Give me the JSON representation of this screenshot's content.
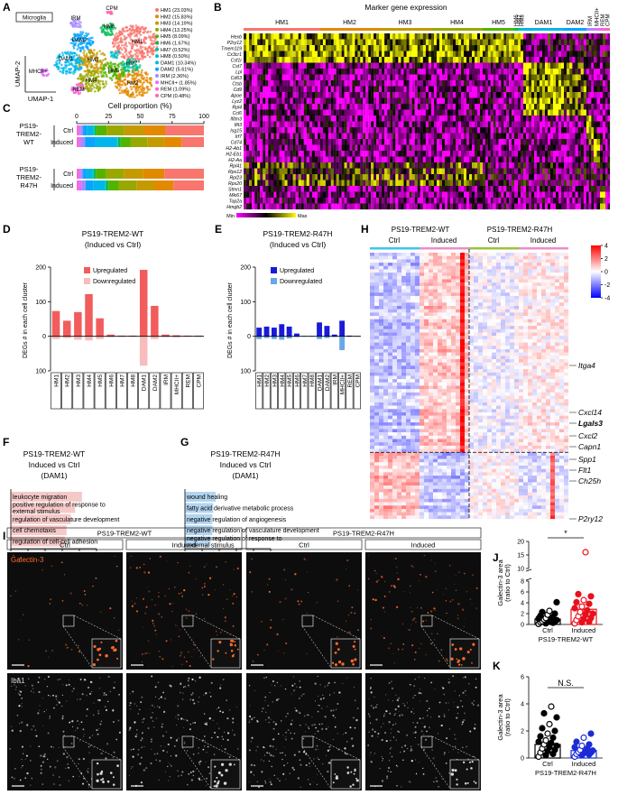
{
  "panel_letters": [
    "A",
    "B",
    "C",
    "D",
    "E",
    "F",
    "G",
    "H",
    "I",
    "J",
    "K"
  ],
  "umap": {
    "box_label": "Microglia",
    "x_label": "UMAP-1",
    "y_label": "UMAP-2",
    "cluster_labels": [
      "IRM",
      "CPM",
      "HM6",
      "DAM2",
      "HM1",
      "DAM1",
      "HM3",
      "HM5",
      "HM7",
      "HM4",
      "HM2",
      "MHCII+",
      "REM"
    ],
    "legend": [
      {
        "label": "HM1 (23.03%)",
        "color": "#F8766D"
      },
      {
        "label": "HM2 (15.83%)",
        "color": "#E38900"
      },
      {
        "label": "HM3 (14.19%)",
        "color": "#C49A00"
      },
      {
        "label": "HM4 (13.25%)",
        "color": "#99A800"
      },
      {
        "label": "HM5 (8.09%)",
        "color": "#53B400"
      },
      {
        "label": "HM6 (1.67%)",
        "color": "#00BC56"
      },
      {
        "label": "HM7 (0.52%)",
        "color": "#00C094"
      },
      {
        "label": "HM8 (0.50%)",
        "color": "#00BFC4"
      },
      {
        "label": "DAM1 (10.34%)",
        "color": "#00B6EB"
      },
      {
        "label": "DAM2 (5.61%)",
        "color": "#06A4FF"
      },
      {
        "label": "IRM (2.36%)",
        "color": "#A58AFF"
      },
      {
        "label": "MHCII+ (1.85%)",
        "color": "#DF70F8"
      },
      {
        "label": "REM (1.09%)",
        "color": "#FB61D7"
      },
      {
        "label": "CPM (0.48%)",
        "color": "#FF66A8"
      }
    ]
  },
  "marker_heatmap": {
    "title": "Marker gene expression",
    "clusters": [
      "HM1",
      "HM2",
      "HM3",
      "HM4",
      "HM5",
      "HM6",
      "HM7",
      "HM8",
      "DAM1",
      "DAM2",
      "IRM",
      "MHCII+",
      "REM",
      "CPM"
    ],
    "genes": [
      "Hexb",
      "P2ry12",
      "Tmem119",
      "Cx3cr1",
      "Csf1r",
      "Cst7",
      "Lpl",
      "Cd63",
      "Ctsb",
      "Cd9",
      "Apoe",
      "Lyz2",
      "Rpl4",
      "Ccl6",
      "Ifitm3",
      "Ifit3",
      "Isg15",
      "Irf7",
      "Cd74",
      "H2-Ab1",
      "H2-Eb1",
      "H2-Aa",
      "Rpl41",
      "Rps12",
      "Rpl23",
      "Rps20",
      "Stmn1",
      "Mki67",
      "Top2a",
      "Hmgb2"
    ],
    "scale_min": "Min",
    "scale_max": "Max"
  },
  "deg_heatmap": {
    "groups": [
      "PS19-TREM2-WT",
      "PS19-TREM2-R47H"
    ],
    "conditions": [
      "Ctrl",
      "Induced",
      "Ctrl",
      "Induced"
    ],
    "condition_colors": [
      "#3fc6e6",
      "#e88fc8",
      "#9bc33b",
      "#e88fc8"
    ],
    "clim": [
      -4,
      4
    ],
    "cticks": [
      4,
      2,
      0,
      -2,
      -4
    ],
    "genes": [
      "Itga4",
      "Cxcl14",
      "Lgals3",
      "Cxcl2",
      "Capn1",
      "Spp1",
      "Flt1",
      "Ch25h",
      "P2ry12"
    ],
    "bold_gene": 2
  },
  "images": {
    "groups": [
      "PS19-TREM2-WT",
      "PS19-TREM2-R47H"
    ],
    "conditions": [
      "Ctrl",
      "Induced",
      "Ctrl",
      "Induced"
    ],
    "stains": [
      {
        "label": "Galectin-3",
        "color": "#ff6a2a"
      },
      {
        "label": "Iba1",
        "color": "#d8d8d8"
      }
    ]
  },
  "chart_data": [
    {
      "type": "stacked_barh",
      "title": "Cell proportion (%)",
      "groups": [
        [
          "PS19-",
          "TREM2-",
          "WT"
        ],
        [
          "PS19-",
          "TREM2-",
          "R47H"
        ]
      ],
      "categories": [
        "Ctrl",
        "Induced",
        "Ctrl",
        "Induced"
      ],
      "xlim": [
        0,
        100
      ],
      "xticks": [
        0,
        25,
        50,
        75,
        100
      ],
      "series": [
        {
          "color": "#F8766D",
          "values": [
            30.5,
            17.5,
            31,
            24
          ]
        },
        {
          "color": "#E38900",
          "values": [
            17,
            14,
            17,
            15
          ]
        },
        {
          "color": "#C49A00",
          "values": [
            15,
            13,
            15,
            14
          ]
        },
        {
          "color": "#99A800",
          "values": [
            14,
            13,
            14,
            14
          ]
        },
        {
          "color": "#53B400",
          "values": [
            8,
            8,
            8,
            8
          ]
        },
        {
          "color": "#00BC56",
          "values": [
            1.5,
            2,
            1.5,
            2
          ]
        },
        {
          "color": "#00C094",
          "values": [
            0.5,
            0.5,
            0.5,
            0.5
          ]
        },
        {
          "color": "#00BFC4",
          "values": [
            0.5,
            0.5,
            0.5,
            0.5
          ]
        },
        {
          "color": "#00B6EB",
          "values": [
            5,
            17,
            5,
            9
          ]
        },
        {
          "color": "#06A4FF",
          "values": [
            3,
            8,
            2.5,
            6
          ]
        },
        {
          "color": "#A58AFF",
          "values": [
            2,
            3,
            2,
            3
          ]
        },
        {
          "color": "#DF70F8",
          "values": [
            1.5,
            2,
            1.5,
            2.5
          ]
        },
        {
          "color": "#FB61D7",
          "values": [
            1,
            1,
            1,
            1
          ]
        },
        {
          "color": "#FF66A8",
          "values": [
            0.5,
            0.5,
            0.5,
            0.5
          ]
        }
      ]
    },
    {
      "type": "bar",
      "title": "PS19-TREM2-WT",
      "subtitle": "(Induced vs Ctrl)",
      "y_label": "DEGs # in each cell cluster",
      "categories": [
        "HM1",
        "HM2",
        "HM3",
        "HM4",
        "HM5",
        "HM6",
        "HM7",
        "HM8",
        "DAM1",
        "DAM2",
        "IRM",
        "MHCII+",
        "REM",
        "CPM"
      ],
      "ylim": [
        -100,
        200
      ],
      "yticks": [
        {
          "value": -100,
          "label": "100"
        },
        0,
        100,
        200
      ],
      "series": [
        {
          "name": "Upregulated",
          "color": "#f25c5c",
          "values": [
            73,
            45,
            70,
            122,
            52,
            5,
            2,
            2,
            192,
            88,
            5,
            3,
            2,
            2
          ]
        },
        {
          "name": "Downregulated",
          "color": "#f8bcbc",
          "values": [
            -8,
            -5,
            -10,
            -12,
            -8,
            -2,
            -1,
            -1,
            -85,
            -8,
            -2,
            -3,
            -1,
            -1
          ]
        }
      ]
    },
    {
      "type": "bar",
      "title": "PS19-TREM2-R47H",
      "subtitle": "(Induced vs Ctrl)",
      "y_label": "DEGs # in each cell cluster",
      "categories": [
        "HM1",
        "HM2",
        "HM3",
        "HM4",
        "HM5",
        "HM6",
        "HM7",
        "HM8",
        "DAM1",
        "DAM2",
        "IRM",
        "MHCII+",
        "REM",
        "CPM"
      ],
      "ylim": [
        -100,
        200
      ],
      "yticks": [
        {
          "value": -100,
          "label": "100"
        },
        0,
        100,
        200
      ],
      "series": [
        {
          "name": "Upregulated",
          "color": "#1a1adb",
          "values": [
            25,
            28,
            25,
            35,
            28,
            8,
            1,
            1,
            40,
            30,
            5,
            45,
            2,
            1
          ]
        },
        {
          "name": "Downregulated",
          "color": "#6aa7e8",
          "values": [
            -8,
            -5,
            -8,
            -10,
            -6,
            -2,
            -1,
            -1,
            -8,
            -5,
            -2,
            -40,
            -1,
            -1
          ]
        }
      ]
    },
    {
      "type": "barh",
      "title_lines": [
        "PS19-TREM2-WT",
        "Induced vs Ctrl",
        "(DAM1)"
      ],
      "x_label": "-Log (p)",
      "color": "#f6c9c9",
      "categories": [
        [
          "leukocyte migration"
        ],
        [
          "positive regulation of response to",
          "external stimulus"
        ],
        [
          "regulation of vasculature development"
        ],
        [
          "cell chemotaxis"
        ],
        [
          "regulation of cell-cell adhesion"
        ]
      ],
      "values": [
        8.3,
        7.5,
        7,
        6.5,
        6.3
      ],
      "xlim": [
        0,
        10
      ],
      "xticks": [
        0,
        2,
        4,
        6,
        8,
        10
      ]
    },
    {
      "type": "barh",
      "title_lines": [
        "PS19-TREM2-R47H",
        "Induced vs Ctrl",
        "(DAM1)"
      ],
      "x_label": "-Log (p)",
      "color": "#b3d4f0",
      "categories": [
        [
          "wound healing"
        ],
        [
          "fatty acid derivative metabolic process"
        ],
        [
          "negative regulation of angiogenesis"
        ],
        [
          "negative regulation of vasculature development"
        ],
        [
          "negative regulation of response to",
          "external stimulus"
        ]
      ],
      "values": [
        3.6,
        3.3,
        3.2,
        3.2,
        3
      ],
      "xlim": [
        0,
        10
      ],
      "xticks": [
        0,
        2,
        4,
        6,
        8,
        10
      ]
    },
    {
      "type": "bar_scatter",
      "y_label": [
        "Galectin-3 area",
        "(ratio to Ctrl)"
      ],
      "categories": [
        "Ctrl",
        "Induced"
      ],
      "group_label": "PS19-TREM2-WT",
      "significance": "*",
      "colors": [
        "#000000",
        "#e8101c"
      ],
      "means": [
        1,
        2.8
      ],
      "errors": [
        0.3,
        0.9
      ],
      "points": [
        [
          0.1,
          0.2,
          0.3,
          0.4,
          0.5,
          0.5,
          0.6,
          0.7,
          0.8,
          0.9,
          1,
          1.1,
          1.2,
          1.4,
          1.6,
          1.8,
          2,
          2.3,
          2.5,
          4.1
        ],
        [
          0.2,
          0.4,
          0.5,
          0.8,
          1,
          1.2,
          1.5,
          1.8,
          2,
          2.3,
          2.6,
          3,
          3.3,
          3.8,
          4.1,
          4.5,
          5.2,
          5.6,
          16
        ]
      ],
      "ylim": [
        0,
        20
      ],
      "ybreak": [
        8,
        10
      ],
      "yticks": [
        0,
        2,
        4,
        6,
        8,
        10,
        15,
        20
      ]
    },
    {
      "type": "bar_scatter",
      "y_label": [
        "Galectin-3 area",
        "(ratio to Ctrl)"
      ],
      "categories": [
        "Ctrl",
        "Induced"
      ],
      "group_label": "PS19-TREM2-R47H",
      "significance": "N.S.",
      "colors": [
        "#000000",
        "#1d2bd6"
      ],
      "means": [
        1,
        0.55
      ],
      "errors": [
        0.25,
        0.1
      ],
      "points": [
        [
          0.1,
          0.2,
          0.3,
          0.4,
          0.5,
          0.6,
          0.7,
          0.8,
          0.9,
          1,
          1.1,
          1.2,
          1.3,
          1.5,
          1.6,
          1.8,
          2,
          2.2,
          2.5,
          3,
          3.3,
          3.8
        ],
        [
          0.1,
          0.2,
          0.25,
          0.3,
          0.35,
          0.4,
          0.45,
          0.5,
          0.55,
          0.6,
          0.7,
          0.8,
          0.9,
          1,
          1.2,
          1.5,
          1.8
        ]
      ],
      "ylim": [
        0,
        6
      ],
      "yticks": [
        0,
        2,
        4,
        6
      ]
    }
  ]
}
